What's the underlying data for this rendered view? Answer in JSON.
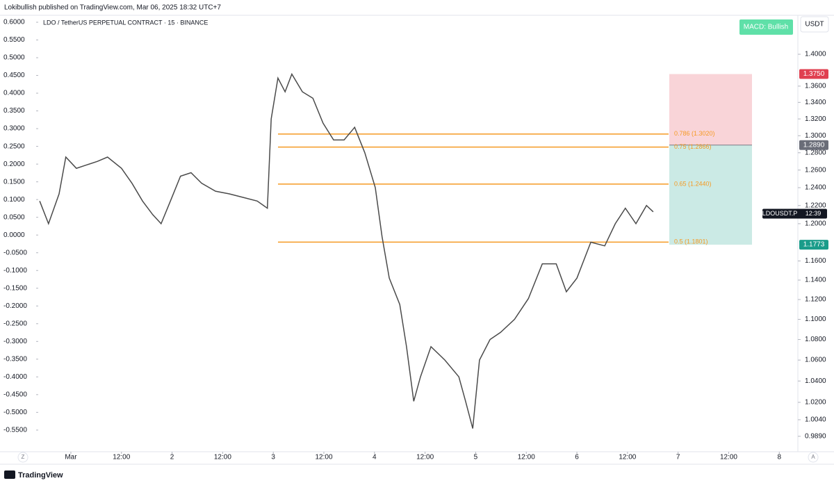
{
  "header": {
    "published": "Lokibullish published on TradingView.com, Mar 06, 2025 18:32 UTC+7",
    "footer_logo": "TradingView"
  },
  "chart_data": {
    "type": "line",
    "title": "LDO / TetherUS PERPETUAL CONTRACT · 15 · BINANCE",
    "badge": "MACD: Bullish",
    "currency": "USDT",
    "axis_buttons": [
      "Z",
      "A"
    ],
    "ylog": true,
    "grid": false,
    "xlim": [
      -7.74,
      172.4
    ],
    "xticks": [
      {
        "value": 0,
        "label": "Mar"
      },
      {
        "value": 12,
        "label": "12:00"
      },
      {
        "value": 24,
        "label": "2"
      },
      {
        "value": 36,
        "label": "12:00"
      },
      {
        "value": 48,
        "label": "3"
      },
      {
        "value": 60,
        "label": "12:00"
      },
      {
        "value": 72,
        "label": "4"
      },
      {
        "value": 84,
        "label": "12:00"
      },
      {
        "value": 96,
        "label": "5"
      },
      {
        "value": 108,
        "label": "12:00"
      },
      {
        "value": 120,
        "label": "6"
      },
      {
        "value": 132,
        "label": "12:00"
      },
      {
        "value": 144,
        "label": "7"
      },
      {
        "value": 156,
        "label": "12:00"
      },
      {
        "value": 168,
        "label": "8"
      }
    ],
    "ylim": [
      0.9752,
      1.4505
    ],
    "yticks": [
      {
        "value": 1.4,
        "label": "1.4000"
      },
      {
        "value": 1.36,
        "label": "1.3600"
      },
      {
        "value": 1.34,
        "label": "1.3400"
      },
      {
        "value": 1.32,
        "label": "1.3200"
      },
      {
        "value": 1.3,
        "label": "1.3000"
      },
      {
        "value": 1.28,
        "label": "1.2800"
      },
      {
        "value": 1.26,
        "label": "1.2600"
      },
      {
        "value": 1.24,
        "label": "1.2400"
      },
      {
        "value": 1.22,
        "label": "1.2200"
      },
      {
        "value": 1.2,
        "label": "1.2000"
      },
      {
        "value": 1.16,
        "label": "1.1600"
      },
      {
        "value": 1.14,
        "label": "1.1400"
      },
      {
        "value": 1.12,
        "label": "1.1200"
      },
      {
        "value": 1.1,
        "label": "1.1000"
      },
      {
        "value": 1.08,
        "label": "1.0800"
      },
      {
        "value": 1.06,
        "label": "1.0600"
      },
      {
        "value": 1.04,
        "label": "1.0400"
      },
      {
        "value": 1.02,
        "label": "1.0200"
      },
      {
        "value": 1.004,
        "label": "1.0040"
      },
      {
        "value": 0.989,
        "label": "0.9890"
      }
    ],
    "y2lim": [
      -0.611,
      0.6196
    ],
    "y2ticks": [
      {
        "value": 0.6,
        "label": "0.6000"
      },
      {
        "value": 0.55,
        "label": "0.5500"
      },
      {
        "value": 0.5,
        "label": "0.5000"
      },
      {
        "value": 0.45,
        "label": "0.4500"
      },
      {
        "value": 0.4,
        "label": "0.4000"
      },
      {
        "value": 0.35,
        "label": "0.3500"
      },
      {
        "value": 0.3,
        "label": "0.3000"
      },
      {
        "value": 0.25,
        "label": "0.2500"
      },
      {
        "value": 0.2,
        "label": "0.2000"
      },
      {
        "value": 0.15,
        "label": "0.1500"
      },
      {
        "value": 0.1,
        "label": "0.1000"
      },
      {
        "value": 0.05,
        "label": "0.0500"
      },
      {
        "value": 0,
        "label": "0.0000"
      },
      {
        "value": -0.05,
        "label": "-0.0500"
      },
      {
        "value": -0.1,
        "label": "-0.1000"
      },
      {
        "value": -0.15,
        "label": "-0.1500"
      },
      {
        "value": -0.2,
        "label": "-0.2000"
      },
      {
        "value": -0.25,
        "label": "-0.2500"
      },
      {
        "value": -0.3,
        "label": "-0.3000"
      },
      {
        "value": -0.35,
        "label": "-0.3500"
      },
      {
        "value": -0.4,
        "label": "-0.4000"
      },
      {
        "value": -0.45,
        "label": "-0.4500"
      },
      {
        "value": -0.5,
        "label": "-0.5000"
      },
      {
        "value": -0.55,
        "label": "-0.5500"
      }
    ],
    "x": [
      -7.4,
      -5.3,
      -2.8,
      -1.2,
      1.3,
      3.8,
      6.3,
      8.7,
      12,
      14.5,
      17,
      19.4,
      21.4,
      23.6,
      26,
      28.5,
      31,
      34.3,
      37.6,
      40.9,
      44.2,
      46.6,
      47.5,
      49.1,
      50.8,
      52.4,
      54.9,
      57.4,
      59.8,
      62.3,
      64.8,
      67.3,
      69.7,
      72.2,
      73.8,
      75.5,
      78,
      79.6,
      81.3,
      82.9,
      85.4,
      88.7,
      92,
      93.6,
      95.3,
      96.9,
      99.4,
      101.9,
      105.2,
      108.5,
      111.8,
      115.1,
      117.5,
      120,
      123.3,
      126.6,
      129.1,
      131.5,
      134,
      136.5,
      138.1
    ],
    "series": [
      {
        "color": "#4a4a4a",
        "values": [
          1.225,
          1.2,
          1.233,
          1.275,
          1.262,
          1.266,
          1.27,
          1.275,
          1.262,
          1.245,
          1.225,
          1.21,
          1.2,
          1.225,
          1.253,
          1.257,
          1.245,
          1.236,
          1.233,
          1.229,
          1.225,
          1.217,
          1.32,
          1.37,
          1.353,
          1.375,
          1.353,
          1.345,
          1.315,
          1.295,
          1.295,
          1.31,
          1.28,
          1.24,
          1.186,
          1.142,
          1.115,
          1.073,
          1.021,
          1.044,
          1.073,
          1.06,
          1.044,
          1.021,
          0.996,
          1.06,
          1.08,
          1.087,
          1.1,
          1.121,
          1.157,
          1.157,
          1.128,
          1.142,
          1.18,
          1.176,
          1.2,
          1.217,
          1.2,
          1.22,
          1.213
        ]
      }
    ],
    "fib_levels": [
      {
        "text": "0.786 (1.3020)",
        "value": 1.302
      },
      {
        "text": "0.75 (1.2866)",
        "value": 1.2866
      },
      {
        "text": "0.65 (1.2440)",
        "value": 1.244
      },
      {
        "text": "0.5 (1.1801)",
        "value": 1.1801
      }
    ],
    "fib_color": "#f59a23",
    "position": {
      "stop": {
        "value": 1.375,
        "label": "1.3750"
      },
      "entry": {
        "value": 1.289,
        "label": "1.2890"
      },
      "target": {
        "value": 1.1773,
        "label": "1.1773"
      }
    },
    "last_price": {
      "symbol": "LDOUSDT.P",
      "countdown": "12:39",
      "value": 1.211
    }
  }
}
